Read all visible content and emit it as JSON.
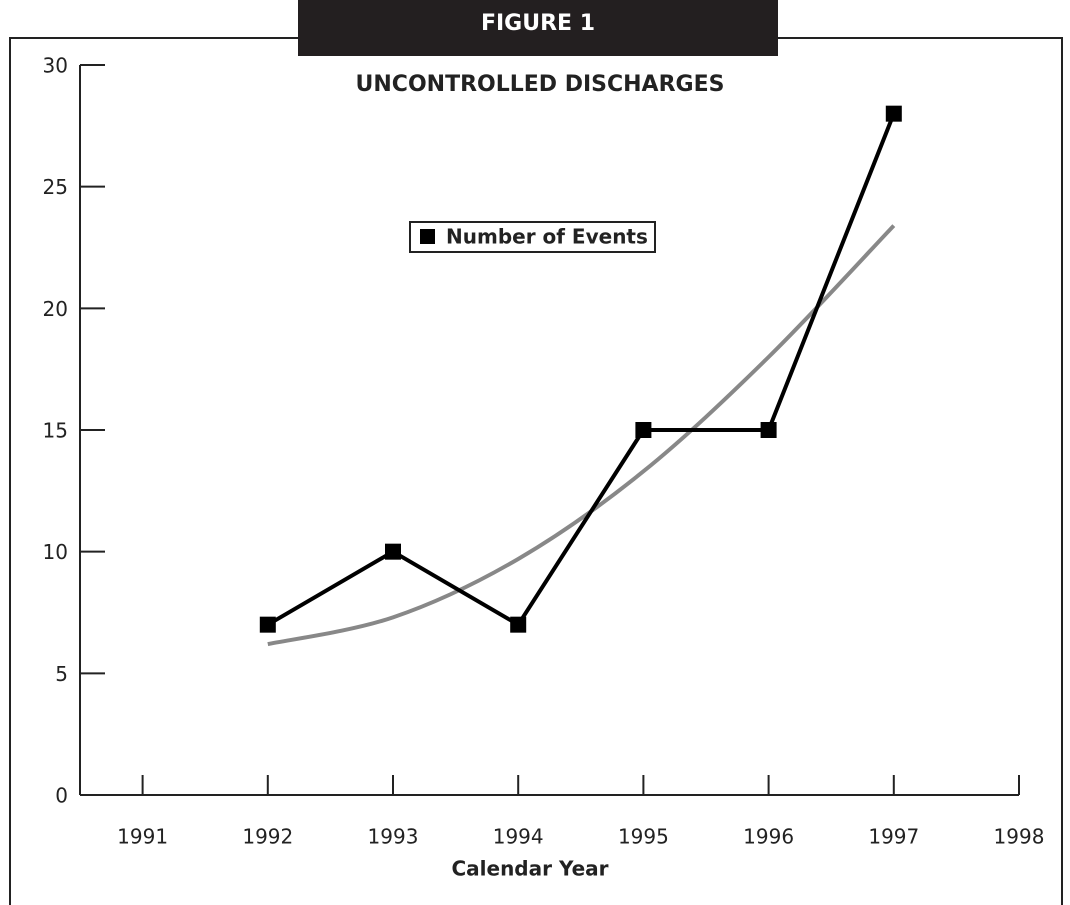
{
  "chart_data": {
    "type": "line",
    "header": "FIGURE 1",
    "title": "UNCONTROLLED DISCHARGES",
    "x_label": "Calendar Year",
    "x": [
      1992,
      1993,
      1994,
      1995,
      1996,
      1997
    ],
    "series": [
      {
        "name": "Number of Events",
        "color": "#000000",
        "values": [
          7,
          10,
          7,
          15,
          15,
          28
        ],
        "markers": true
      },
      {
        "color": "#888888",
        "values": [
          6.2,
          7.3,
          9.7,
          13.3,
          18.0,
          23.4
        ],
        "smooth": true
      }
    ],
    "xlim": [
      1990.5,
      1998
    ],
    "xticks": [
      1991,
      1992,
      1993,
      1994,
      1995,
      1996,
      1997,
      1998
    ],
    "ylim": [
      0,
      30
    ],
    "yticks": [
      0,
      5,
      10,
      15,
      20,
      25,
      30
    ]
  }
}
